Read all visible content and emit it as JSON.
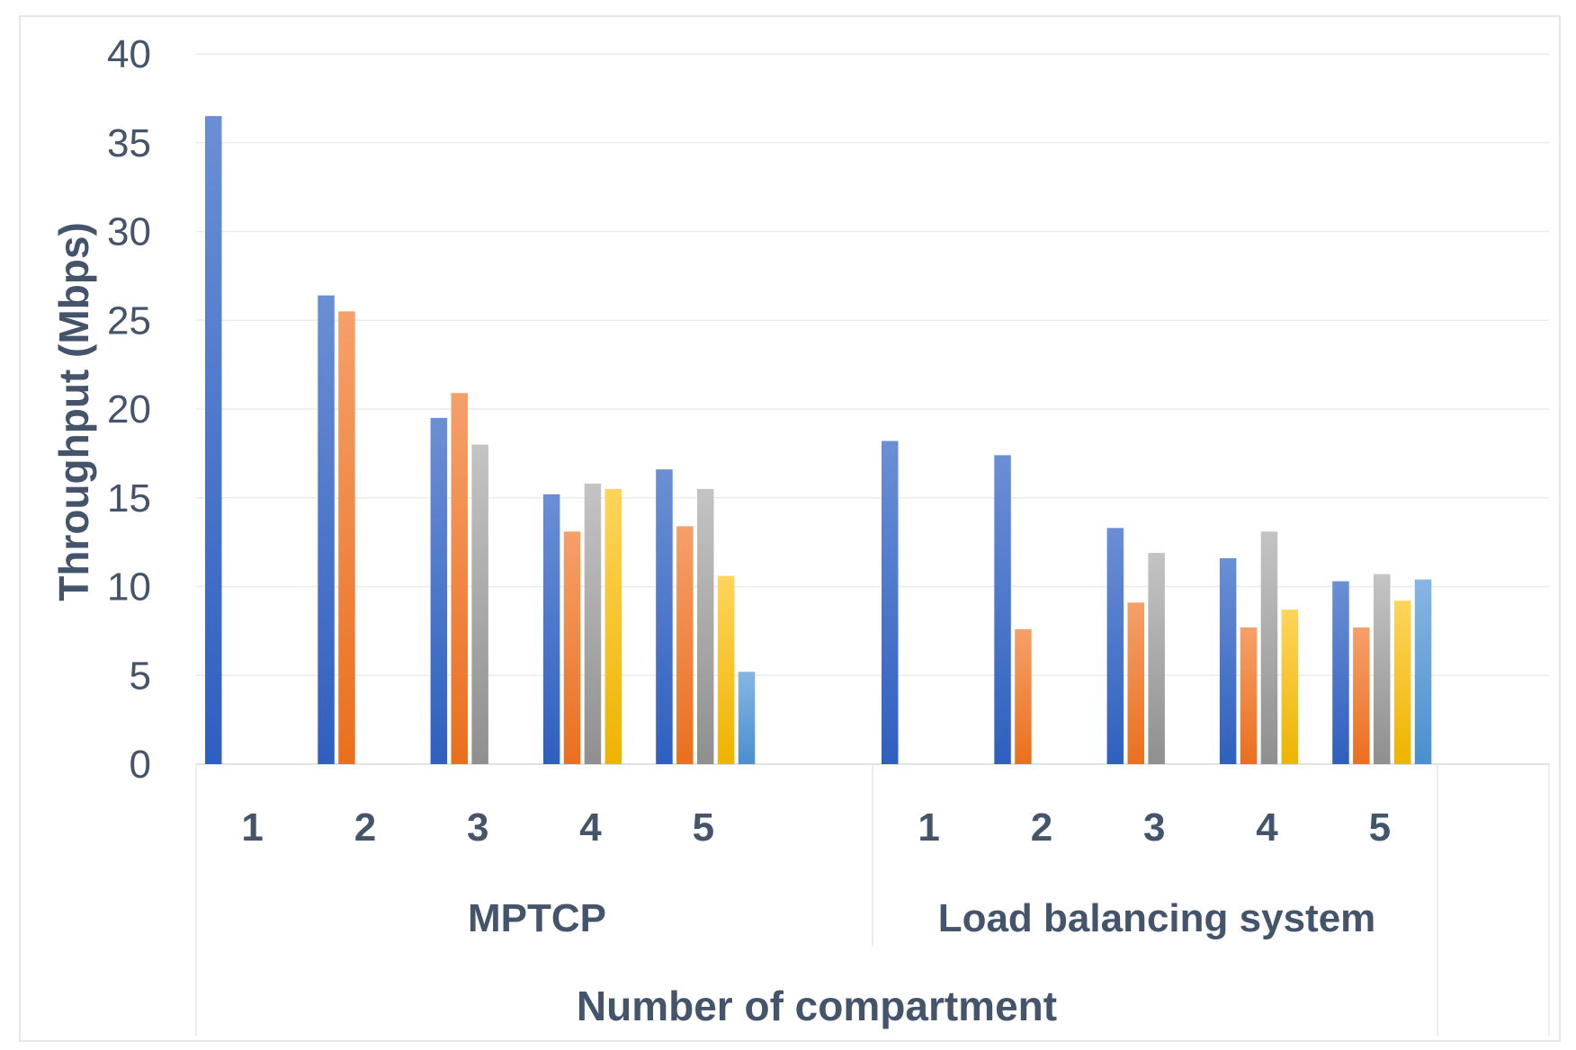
{
  "chart_data": {
    "type": "bar",
    "title": "",
    "xlabel": "Number of compartment",
    "ylabel": "Throughput (Mbps)",
    "ylim": [
      0,
      40
    ],
    "yticks": [
      "0",
      "5",
      "10",
      "15",
      "20",
      "25",
      "30",
      "35",
      "40"
    ],
    "grid": true,
    "legend": "none",
    "series_colors": [
      "#4472c4",
      "#ed7d31",
      "#a5a5a5",
      "#ffc000",
      "#5b9bd5"
    ],
    "groups": [
      {
        "label": "MPTCP",
        "categories": [
          {
            "label": "1",
            "values": [
              36.5
            ]
          },
          {
            "label": "2",
            "values": [
              26.4,
              25.5
            ]
          },
          {
            "label": "3",
            "values": [
              19.5,
              20.9,
              18.0
            ]
          },
          {
            "label": "4",
            "values": [
              15.2,
              13.1,
              15.8,
              15.5
            ]
          },
          {
            "label": "5",
            "values": [
              16.6,
              13.4,
              15.5,
              10.6,
              5.2
            ]
          }
        ]
      },
      {
        "label": "Load balancing system",
        "categories": [
          {
            "label": "1",
            "values": [
              18.2
            ]
          },
          {
            "label": "2",
            "values": [
              17.4,
              7.6
            ]
          },
          {
            "label": "3",
            "values": [
              13.3,
              9.1,
              11.9
            ]
          },
          {
            "label": "4",
            "values": [
              11.6,
              7.7,
              13.1,
              8.7
            ]
          },
          {
            "label": "5",
            "values": [
              10.3,
              7.7,
              10.7,
              9.2,
              10.4
            ]
          }
        ]
      }
    ]
  }
}
